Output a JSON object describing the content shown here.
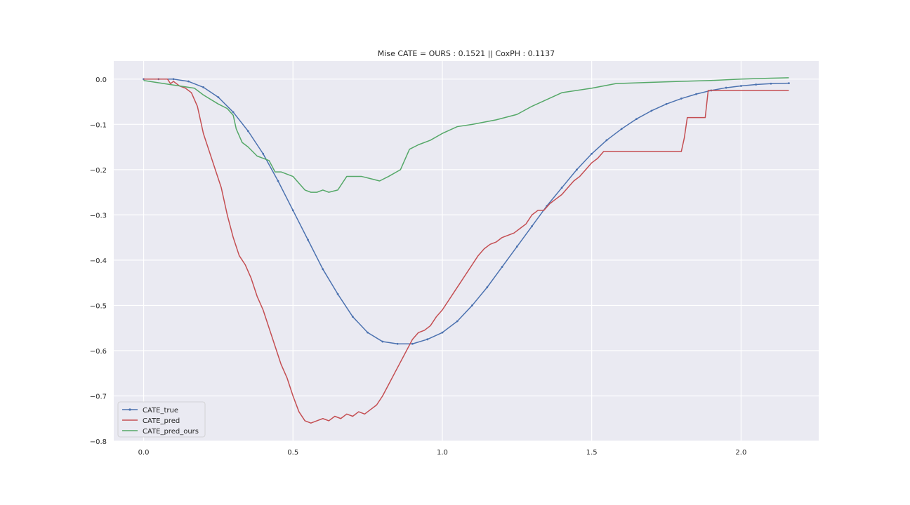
{
  "chart_data": {
    "type": "line",
    "title": "Mise CATE =  OURS : 0.1521 || CoxPH : 0.1137",
    "xlabel": "",
    "ylabel": "",
    "xlim": [
      -0.1,
      2.26
    ],
    "ylim": [
      -0.8,
      0.04
    ],
    "xticks": [
      0.0,
      0.5,
      1.0,
      1.5,
      2.0
    ],
    "xtick_labels": [
      "0.0",
      "0.5",
      "1.0",
      "1.5",
      "2.0"
    ],
    "yticks": [
      0.0,
      -0.1,
      -0.2,
      -0.3,
      -0.4,
      -0.5,
      -0.6,
      -0.7,
      -0.8
    ],
    "ytick_labels": [
      "0.0",
      "−0.1",
      "−0.2",
      "−0.3",
      "−0.4",
      "−0.5",
      "−0.6",
      "−0.7",
      "−0.8"
    ],
    "grid": true,
    "legend_position": "lower-left",
    "background": "#eaeaf2",
    "series": [
      {
        "name": "CATE_true",
        "color": "#4c72b0",
        "marker": "point",
        "x": [
          0.0,
          0.05,
          0.1,
          0.15,
          0.2,
          0.25,
          0.3,
          0.35,
          0.4,
          0.45,
          0.5,
          0.55,
          0.6,
          0.65,
          0.7,
          0.75,
          0.8,
          0.85,
          0.9,
          0.95,
          1.0,
          1.05,
          1.1,
          1.15,
          1.2,
          1.25,
          1.3,
          1.35,
          1.4,
          1.45,
          1.5,
          1.55,
          1.6,
          1.65,
          1.7,
          1.75,
          1.8,
          1.85,
          1.9,
          1.95,
          2.0,
          2.05,
          2.1,
          2.16
        ],
        "y": [
          0.0,
          0.0,
          0.0,
          -0.005,
          -0.018,
          -0.04,
          -0.073,
          -0.115,
          -0.165,
          -0.225,
          -0.29,
          -0.355,
          -0.42,
          -0.475,
          -0.525,
          -0.56,
          -0.58,
          -0.585,
          -0.585,
          -0.575,
          -0.56,
          -0.535,
          -0.5,
          -0.46,
          -0.415,
          -0.37,
          -0.325,
          -0.28,
          -0.24,
          -0.2,
          -0.165,
          -0.135,
          -0.11,
          -0.088,
          -0.07,
          -0.055,
          -0.043,
          -0.033,
          -0.025,
          -0.019,
          -0.015,
          -0.012,
          -0.01,
          -0.009
        ]
      },
      {
        "name": "CATE_pred",
        "color": "#c44e52",
        "marker": "none",
        "x": [
          0.0,
          0.08,
          0.09,
          0.1,
          0.12,
          0.14,
          0.16,
          0.18,
          0.2,
          0.22,
          0.24,
          0.26,
          0.28,
          0.3,
          0.32,
          0.34,
          0.36,
          0.38,
          0.4,
          0.42,
          0.44,
          0.46,
          0.48,
          0.5,
          0.52,
          0.54,
          0.56,
          0.58,
          0.6,
          0.62,
          0.64,
          0.66,
          0.68,
          0.7,
          0.72,
          0.74,
          0.76,
          0.78,
          0.8,
          0.82,
          0.84,
          0.86,
          0.88,
          0.9,
          0.92,
          0.94,
          0.96,
          0.98,
          1.0,
          1.02,
          1.04,
          1.06,
          1.08,
          1.1,
          1.12,
          1.14,
          1.16,
          1.18,
          1.2,
          1.22,
          1.24,
          1.26,
          1.28,
          1.3,
          1.32,
          1.34,
          1.36,
          1.38,
          1.4,
          1.42,
          1.44,
          1.46,
          1.48,
          1.5,
          1.52,
          1.54,
          1.56,
          1.58,
          1.6,
          1.62,
          1.7,
          1.8,
          1.81,
          1.82,
          1.83,
          1.88,
          1.89,
          1.95,
          2.0,
          2.16
        ],
        "y": [
          0.0,
          0.0,
          -0.01,
          -0.005,
          -0.015,
          -0.02,
          -0.03,
          -0.06,
          -0.12,
          -0.16,
          -0.2,
          -0.24,
          -0.3,
          -0.35,
          -0.39,
          -0.41,
          -0.44,
          -0.48,
          -0.51,
          -0.55,
          -0.59,
          -0.63,
          -0.66,
          -0.7,
          -0.735,
          -0.755,
          -0.76,
          -0.755,
          -0.75,
          -0.755,
          -0.745,
          -0.75,
          -0.74,
          -0.745,
          -0.735,
          -0.74,
          -0.73,
          -0.72,
          -0.7,
          -0.675,
          -0.65,
          -0.625,
          -0.6,
          -0.575,
          -0.56,
          -0.555,
          -0.545,
          -0.525,
          -0.51,
          -0.49,
          -0.47,
          -0.45,
          -0.43,
          -0.41,
          -0.39,
          -0.375,
          -0.365,
          -0.36,
          -0.35,
          -0.345,
          -0.34,
          -0.33,
          -0.32,
          -0.3,
          -0.29,
          -0.29,
          -0.275,
          -0.265,
          -0.255,
          -0.24,
          -0.225,
          -0.215,
          -0.2,
          -0.185,
          -0.175,
          -0.16,
          -0.16,
          -0.16,
          -0.16,
          -0.16,
          -0.16,
          -0.16,
          -0.13,
          -0.085,
          -0.085,
          -0.085,
          -0.025,
          -0.025,
          -0.025,
          -0.025
        ]
      },
      {
        "name": "CATE_pred_ours",
        "color": "#55a868",
        "marker": "none",
        "x": [
          0.0,
          0.05,
          0.1,
          0.17,
          0.2,
          0.25,
          0.28,
          0.3,
          0.31,
          0.33,
          0.35,
          0.38,
          0.4,
          0.42,
          0.44,
          0.46,
          0.5,
          0.52,
          0.54,
          0.56,
          0.58,
          0.6,
          0.62,
          0.65,
          0.68,
          0.7,
          0.73,
          0.76,
          0.79,
          0.82,
          0.86,
          0.89,
          0.92,
          0.96,
          1.0,
          1.05,
          1.1,
          1.18,
          1.25,
          1.3,
          1.4,
          1.5,
          1.58,
          1.7,
          1.8,
          1.9,
          2.0,
          2.1,
          2.16
        ],
        "y": [
          -0.003,
          -0.008,
          -0.013,
          -0.02,
          -0.035,
          -0.055,
          -0.065,
          -0.08,
          -0.11,
          -0.14,
          -0.15,
          -0.17,
          -0.175,
          -0.18,
          -0.205,
          -0.205,
          -0.215,
          -0.23,
          -0.245,
          -0.25,
          -0.25,
          -0.245,
          -0.25,
          -0.245,
          -0.215,
          -0.215,
          -0.215,
          -0.22,
          -0.225,
          -0.215,
          -0.2,
          -0.155,
          -0.145,
          -0.135,
          -0.12,
          -0.105,
          -0.1,
          -0.09,
          -0.078,
          -0.06,
          -0.03,
          -0.02,
          -0.01,
          -0.007,
          -0.005,
          -0.003,
          0.0,
          0.002,
          0.003
        ]
      }
    ]
  }
}
